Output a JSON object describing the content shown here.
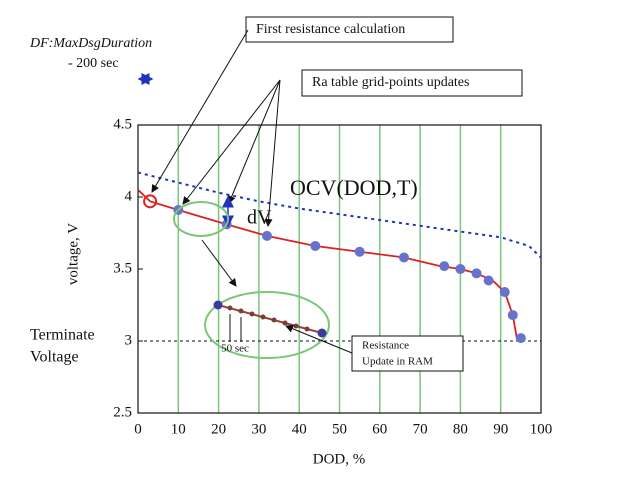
{
  "chart_data": {
    "type": "line",
    "xlabel": "DOD, %",
    "ylabel": "voltage, V",
    "xlim": [
      0,
      100
    ],
    "ylim": [
      2.5,
      4.5
    ],
    "xticks": [
      0,
      10,
      20,
      30,
      40,
      50,
      60,
      70,
      80,
      90,
      100
    ],
    "yticks": [
      2.5,
      3,
      3.5,
      4,
      4.5
    ],
    "grid": true,
    "grid_color": "#7cc67c",
    "series": [
      {
        "name": "OCV(DOD,T)",
        "color": "#2233bb",
        "style": "dotted",
        "x": [
          0,
          10,
          20,
          30,
          40,
          50,
          60,
          70,
          80,
          90,
          97,
          100
        ],
        "values": [
          4.17,
          4.1,
          4.03,
          3.97,
          3.92,
          3.88,
          3.84,
          3.8,
          3.76,
          3.72,
          3.66,
          3.58
        ]
      },
      {
        "color": "#dd2222",
        "style": "line",
        "x": [
          0,
          3,
          10,
          22,
          32,
          44,
          55,
          66,
          75,
          80,
          84,
          88,
          91,
          93,
          94,
          95
        ],
        "values": [
          4.05,
          3.97,
          3.91,
          3.81,
          3.73,
          3.66,
          3.62,
          3.58,
          3.52,
          3.5,
          3.47,
          3.42,
          3.34,
          3.18,
          3.02,
          3.02
        ]
      },
      {
        "color": "#6672cc",
        "style": "markers",
        "x": [
          10,
          22,
          32,
          44,
          55,
          66,
          76,
          80,
          84,
          87,
          91,
          93,
          95
        ],
        "values": [
          3.91,
          3.81,
          3.73,
          3.66,
          3.62,
          3.58,
          3.52,
          3.5,
          3.47,
          3.42,
          3.34,
          3.18,
          3.02
        ]
      },
      {
        "color": "#dd2222",
        "style": "ring",
        "x": [
          3
        ],
        "values": [
          3.97
        ]
      }
    ],
    "hline": {
      "value": 3,
      "label": [
        "Terminate",
        "Voltage"
      ]
    },
    "annotations": {
      "first_calc": "First resistance calculation",
      "grid_updates": "Ra table grid-points updates",
      "max_dsg": "DF:MaxDsgDuration",
      "max_dsg_value": "- 200 sec",
      "dv": "dV",
      "step": "50 sec",
      "ram_update": [
        "Resistance",
        "Update in RAM"
      ]
    }
  }
}
